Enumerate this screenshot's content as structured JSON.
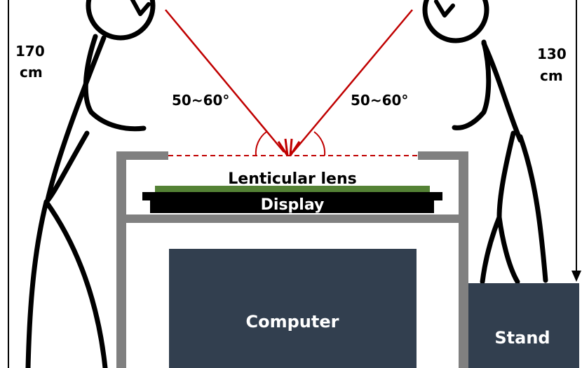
{
  "labels": {
    "left_height": [
      "170",
      "cm"
    ],
    "right_height": [
      "130",
      "cm"
    ],
    "left_angle": "50~60°",
    "right_angle": "50~60°",
    "lens": "Lenticular lens",
    "display": "Display",
    "computer": "Computer",
    "stand": "Stand"
  },
  "colors": {
    "ray": "#c00000",
    "frame": "#808080",
    "lens": "#548235",
    "display": "#000000",
    "computer": "#323f4f",
    "stand": "#323f4f",
    "figure": "#000000",
    "box_text": "#ffffff"
  }
}
